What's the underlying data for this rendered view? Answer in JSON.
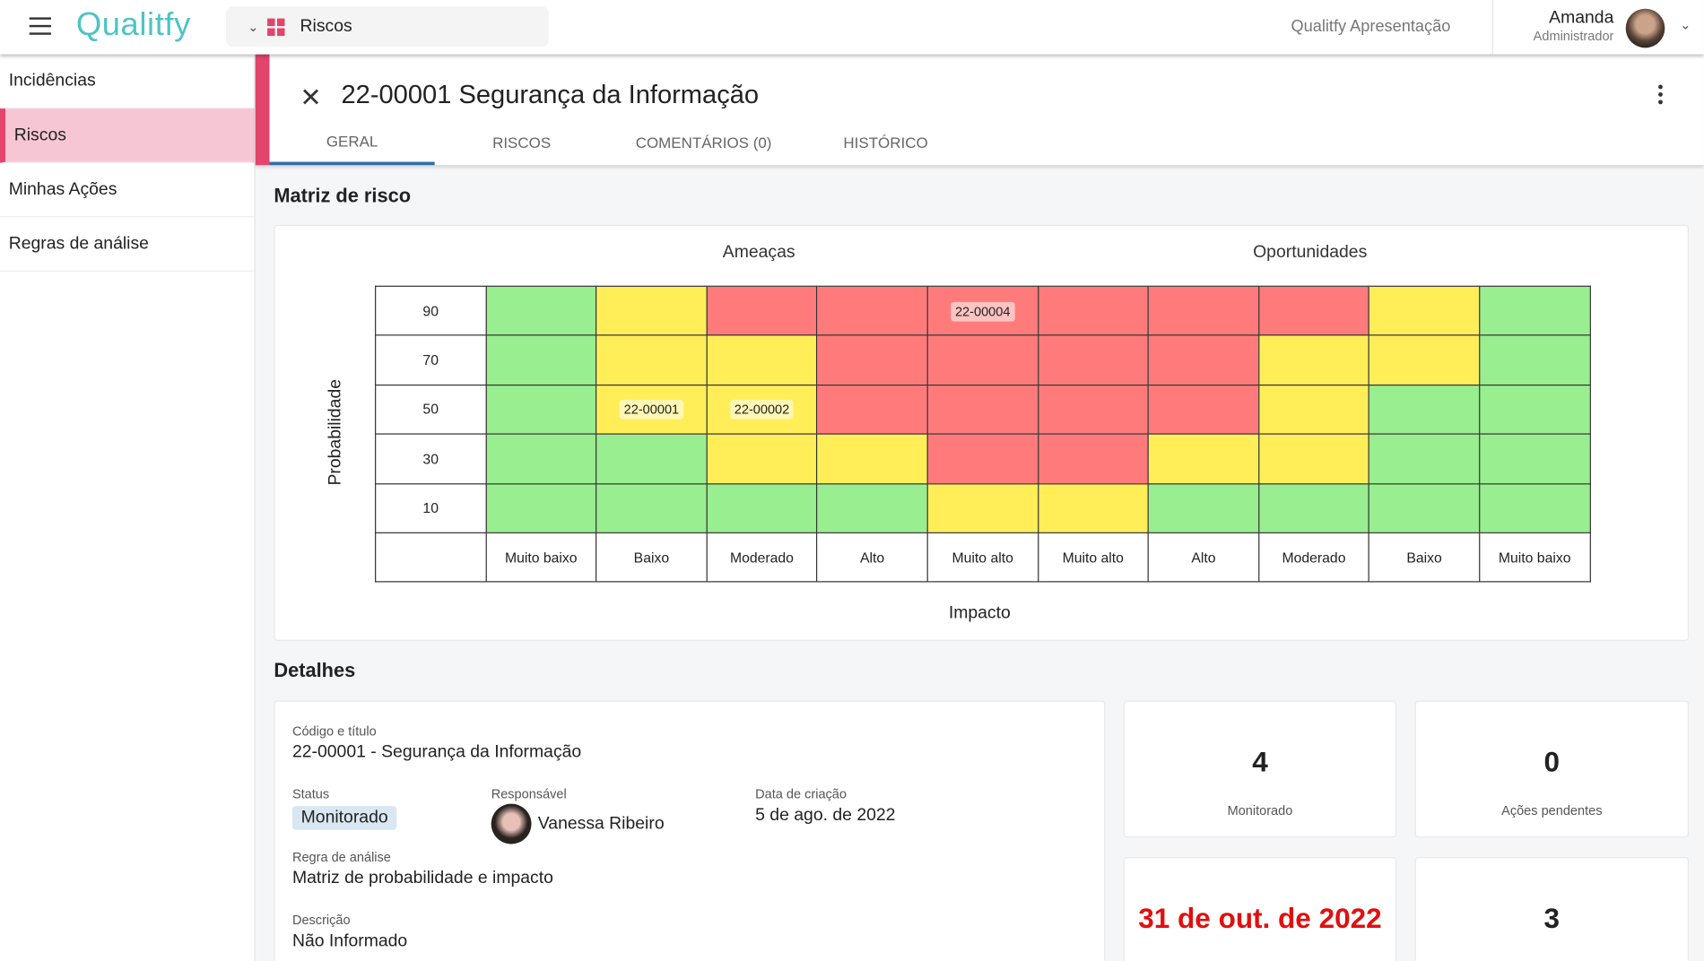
{
  "topbar": {
    "logo": "Qualitfy",
    "module": "Riscos",
    "company": "Qualitfy Apresentação",
    "user_name": "Amanda",
    "user_role": "Administrador"
  },
  "sidebar": {
    "items": [
      {
        "label": "Incidências"
      },
      {
        "label": "Riscos",
        "active": true
      },
      {
        "label": "Minhas Ações"
      },
      {
        "label": "Regras de análise"
      }
    ]
  },
  "header": {
    "title": "22-00001 Segurança da Informação",
    "tabs": [
      {
        "label": "GERAL",
        "active": true
      },
      {
        "label": "RISCOS"
      },
      {
        "label": "COMENTÁRIOS (0)"
      },
      {
        "label": "HISTÓRICO"
      }
    ]
  },
  "matrix": {
    "section_title": "Matriz de risco",
    "threats_label": "Ameaças",
    "opportunities_label": "Oportunidades",
    "y_label": "Probabilidade",
    "x_label": "Impacto",
    "rows": [
      "90",
      "70",
      "50",
      "30",
      "10"
    ],
    "columns": [
      "Muito baixo",
      "Baixo",
      "Moderado",
      "Alto",
      "Muito alto",
      "Muito alto",
      "Alto",
      "Moderado",
      "Baixo",
      "Muito baixo"
    ],
    "colors": {
      "G": "#99ee90",
      "Y": "#ffee58",
      "R": "#ff7b7b"
    },
    "cells": [
      [
        "G",
        "Y",
        "R",
        "R",
        "R",
        "R",
        "R",
        "R",
        "Y",
        "G"
      ],
      [
        "G",
        "Y",
        "Y",
        "R",
        "R",
        "R",
        "R",
        "Y",
        "Y",
        "G"
      ],
      [
        "G",
        "Y",
        "Y",
        "R",
        "R",
        "R",
        "R",
        "Y",
        "G",
        "G"
      ],
      [
        "G",
        "G",
        "Y",
        "Y",
        "R",
        "R",
        "Y",
        "Y",
        "G",
        "G"
      ],
      [
        "G",
        "G",
        "G",
        "G",
        "Y",
        "Y",
        "G",
        "G",
        "G",
        "G"
      ]
    ],
    "markers": [
      {
        "row": 0,
        "col": 4,
        "label": "22-00004"
      },
      {
        "row": 2,
        "col": 1,
        "label": "22-00001"
      },
      {
        "row": 2,
        "col": 2,
        "label": "22-00002"
      }
    ]
  },
  "details": {
    "section_title": "Detalhes",
    "code_label": "Código e título",
    "code_value": "22-00001 - Segurança da Informação",
    "status_label": "Status",
    "status_value": "Monitorado",
    "resp_label": "Responsável",
    "resp_value": "Vanessa Ribeiro",
    "date_label": "Data de criação",
    "date_value": "5 de ago. de 2022",
    "rule_label": "Regra de análise",
    "rule_value": "Matriz de probabilidade e impacto",
    "desc_label": "Descrição",
    "desc_value": "Não Informado"
  },
  "kpis": [
    {
      "value": "4",
      "label": "Monitorado"
    },
    {
      "value": "0",
      "label": "Ações pendentes"
    },
    {
      "value": "31 de out. de 2022",
      "color": "#e01010"
    },
    {
      "value": "3"
    }
  ]
}
